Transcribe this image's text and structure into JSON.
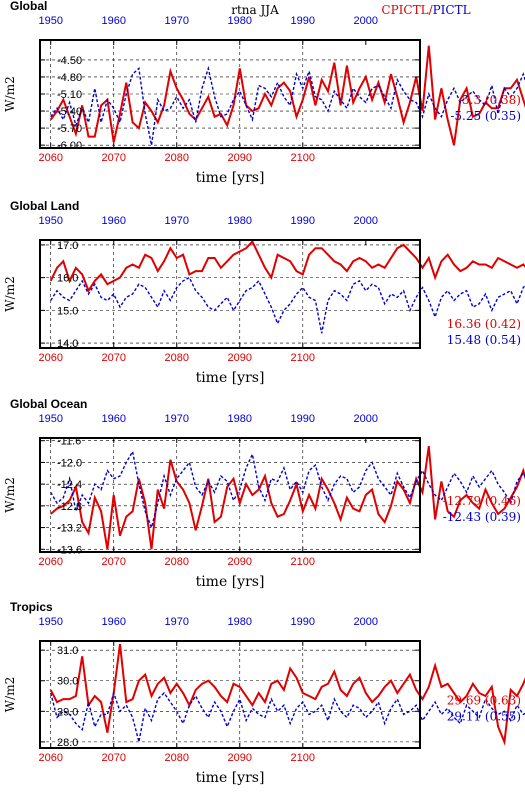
{
  "header": {
    "center": "rtna JJA",
    "legend_red": "CPICTL",
    "legend_sep": "/",
    "legend_blue": "PICTL"
  },
  "colors": {
    "red": "#e00000",
    "blue": "#0000d0"
  },
  "axis": {
    "xlabel": "time [yrs]",
    "ylabel": "W/m2",
    "bottom_ticks": [
      "2060",
      "2070",
      "2080",
      "2090",
      "2100"
    ],
    "top_ticks": [
      "1950",
      "1960",
      "1970",
      "1980",
      "1990",
      "2000"
    ]
  },
  "chart_data": [
    {
      "type": "line",
      "title": "Global",
      "xlabel": "time [yrs]",
      "ylabel": "W/m2",
      "ylim": [
        -6.05,
        -4.15
      ],
      "yticks": [
        -4.5,
        -4.8,
        -5.1,
        -5.4,
        -5.7,
        -6.0
      ],
      "ytick_labels": [
        "-4.50",
        "-4.80",
        "-5.10",
        "-5.40",
        "-5.70",
        "-6.00"
      ],
      "series": [
        {
          "name": "CPICTL",
          "color": "#e00000",
          "x_start": 2060,
          "stat": "-5.3 (0.38)",
          "values": [
            -5.55,
            -5.4,
            -5.2,
            -5.5,
            -5.8,
            -5.3,
            -5.85,
            -5.85,
            -5.3,
            -5.2,
            -5.95,
            -5.45,
            -4.9,
            -5.6,
            -5.7,
            -5.25,
            -5.4,
            -5.6,
            -5.3,
            -4.7,
            -5.0,
            -5.2,
            -5.45,
            -5.55,
            -5.35,
            -5.15,
            -5.5,
            -5.45,
            -5.65,
            -5.3,
            -4.65,
            -5.3,
            -5.4,
            -5.35,
            -5.1,
            -5.3,
            -5.0,
            -4.9,
            -5.05,
            -5.5,
            -5.2,
            -4.8,
            -5.3,
            -4.85,
            -5.05,
            -4.55,
            -5.3,
            -4.6,
            -5.25,
            -5.0,
            -4.8,
            -5.2,
            -4.9,
            -5.25,
            -4.75,
            -5.15,
            -5.6,
            -5.25,
            -4.8,
            -5.4,
            -4.25,
            -5.55,
            -5.0,
            -5.55,
            -6.0,
            -5.2,
            -5.0,
            -5.5,
            -5.45,
            -5.25,
            -5.35,
            -5.35,
            -5.0,
            -5.0,
            -4.85,
            -5.2,
            -5.55,
            -5.65
          ]
        },
        {
          "name": "PICTL",
          "color": "#0000d0",
          "x_start": 1950,
          "stat": "-5.25 (0.35)",
          "values": [
            -5.5,
            -5.35,
            -5.55,
            -5.25,
            -5.65,
            -5.35,
            -5.6,
            -5.0,
            -5.6,
            -5.2,
            -5.35,
            -5.6,
            -5.1,
            -4.75,
            -4.65,
            -5.45,
            -6.0,
            -5.2,
            -5.4,
            -5.35,
            -5.15,
            -5.35,
            -5.2,
            -5.6,
            -5.0,
            -4.65,
            -5.15,
            -5.5,
            -5.45,
            -5.2,
            -5.05,
            -5.3,
            -5.55,
            -4.95,
            -5.0,
            -5.15,
            -4.9,
            -5.15,
            -5.3,
            -4.75,
            -5.0,
            -4.7,
            -5.15,
            -5.2,
            -5.4,
            -5.05,
            -5.2,
            -5.35,
            -5.0,
            -5.15,
            -5.25,
            -5.0,
            -4.95,
            -5.15,
            -5.35,
            -4.85,
            -5.05,
            -5.2,
            -5.25,
            -5.5,
            -5.1,
            -5.35,
            -5.5,
            -5.2,
            -5.0,
            -5.25,
            -5.15,
            -5.05,
            -5.2,
            -5.3,
            -4.95,
            -5.45,
            -5.0,
            -5.15,
            -5.0,
            -4.75,
            -5.1,
            -5.25,
            -5.35,
            -5.2,
            -5.05,
            -5.3,
            -5.55,
            -5.2,
            -4.85,
            -5.15,
            -5.25,
            -5.55,
            -5.35,
            -5.0,
            -5.25,
            -5.0,
            -5.2,
            -6.0,
            -5.4,
            -5.15,
            -4.8,
            -5.05,
            -5.2,
            -5.3
          ]
        }
      ]
    },
    {
      "type": "line",
      "title": "Global Land",
      "xlabel": "time [yrs]",
      "ylabel": "W/m2",
      "ylim": [
        13.85,
        17.15
      ],
      "yticks": [
        17.0,
        16.0,
        15.0,
        14.0
      ],
      "ytick_labels": [
        "17.0",
        "16.0",
        "15.0",
        "14.0"
      ],
      "series": [
        {
          "name": "CPICTL",
          "color": "#e00000",
          "x_start": 2060,
          "stat": "16.36 (0.42)",
          "values": [
            15.9,
            16.3,
            16.5,
            15.9,
            16.3,
            16.1,
            15.6,
            15.9,
            16.1,
            15.8,
            15.9,
            16.0,
            16.3,
            16.4,
            16.3,
            16.7,
            16.6,
            16.2,
            16.5,
            16.9,
            16.6,
            16.7,
            16.1,
            16.2,
            16.2,
            16.6,
            16.6,
            16.3,
            16.5,
            16.7,
            16.8,
            16.9,
            17.1,
            16.7,
            16.3,
            16.0,
            16.7,
            16.6,
            16.5,
            16.2,
            16.1,
            16.7,
            16.9,
            16.9,
            16.7,
            16.5,
            16.4,
            16.2,
            16.5,
            16.6,
            16.5,
            16.3,
            16.4,
            16.3,
            16.6,
            16.9,
            17.0,
            16.8,
            16.6,
            16.3,
            16.6,
            16.0,
            16.5,
            16.7,
            16.4,
            16.2,
            16.3,
            16.5,
            16.4,
            16.4,
            16.3,
            16.6,
            16.5,
            16.4,
            16.3,
            16.4,
            16.2,
            15.5
          ]
        },
        {
          "name": "PICTL",
          "color": "#0000d0",
          "x_start": 1950,
          "stat": "15.48 (0.54)",
          "values": [
            15.3,
            15.6,
            15.4,
            15.3,
            15.6,
            15.9,
            15.5,
            15.8,
            15.4,
            15.3,
            15.5,
            15.1,
            15.4,
            15.5,
            15.8,
            15.7,
            15.4,
            15.1,
            15.6,
            15.3,
            15.7,
            15.9,
            16.0,
            15.6,
            15.4,
            15.1,
            15.0,
            15.2,
            15.4,
            15.0,
            15.3,
            15.6,
            15.7,
            15.9,
            15.5,
            15.1,
            14.6,
            15.0,
            15.2,
            15.5,
            15.7,
            15.4,
            15.3,
            14.3,
            15.3,
            15.6,
            15.5,
            15.3,
            15.8,
            15.9,
            15.6,
            15.8,
            15.7,
            15.2,
            15.5,
            15.4,
            15.6,
            15.0,
            15.4,
            15.7,
            15.3,
            14.8,
            15.4,
            15.6,
            15.3,
            15.5,
            15.6,
            15.1,
            15.2,
            15.5,
            15.0,
            15.4,
            15.5,
            15.6,
            15.2,
            15.7,
            15.9,
            15.5,
            15.6,
            15.1,
            15.3,
            15.9,
            15.7,
            15.4,
            16.3,
            15.3,
            16.1,
            15.2,
            16.3,
            15.5,
            15.9,
            16.2,
            15.8,
            15.0,
            16.2,
            14.0,
            15.9,
            15.5,
            15.6,
            15.2
          ]
        }
      ]
    },
    {
      "type": "line",
      "title": "Global Ocean",
      "xlabel": "time [yrs]",
      "ylabel": "W/m2",
      "ylim": [
        -13.65,
        -11.55
      ],
      "yticks": [
        -11.6,
        -12.0,
        -12.4,
        -12.8,
        -13.2,
        -13.6
      ],
      "ytick_labels": [
        "-11.6",
        "-12.0",
        "-12.4",
        "-12.8",
        "-13.2",
        "-13.6"
      ],
      "series": [
        {
          "name": "CPICTL",
          "color": "#e00000",
          "x_start": 2060,
          "stat": "-12.79 (0.46)",
          "values": [
            -12.95,
            -12.85,
            -12.8,
            -12.7,
            -12.45,
            -13.1,
            -13.3,
            -12.65,
            -12.9,
            -13.6,
            -12.6,
            -13.35,
            -13.0,
            -12.9,
            -12.3,
            -12.75,
            -13.6,
            -12.5,
            -12.85,
            -11.95,
            -12.35,
            -12.5,
            -12.75,
            -13.25,
            -12.8,
            -12.3,
            -13.1,
            -13.0,
            -12.45,
            -12.3,
            -12.75,
            -12.4,
            -12.6,
            -12.5,
            -12.25,
            -12.75,
            -13.0,
            -12.95,
            -12.7,
            -12.4,
            -12.9,
            -12.6,
            -12.85,
            -12.3,
            -12.5,
            -12.75,
            -13.05,
            -12.65,
            -12.85,
            -12.9,
            -12.6,
            -12.5,
            -12.95,
            -13.1,
            -12.8,
            -12.35,
            -12.5,
            -12.75,
            -12.3,
            -12.55,
            -11.7,
            -13.05,
            -12.35,
            -12.9,
            -13.0,
            -12.7,
            -12.6,
            -12.75,
            -12.85,
            -12.5,
            -12.75,
            -12.95,
            -12.85,
            -12.65,
            -12.45,
            -12.15,
            -12.55,
            -12.95
          ]
        },
        {
          "name": "PICTL",
          "color": "#0000d0",
          "x_start": 1950,
          "stat": "-12.43 (0.39)",
          "values": [
            -12.55,
            -12.75,
            -12.65,
            -12.3,
            -12.9,
            -12.6,
            -12.75,
            -12.4,
            -12.5,
            -12.15,
            -12.3,
            -12.25,
            -12.0,
            -11.8,
            -12.4,
            -12.9,
            -13.2,
            -12.75,
            -12.25,
            -12.6,
            -12.3,
            -12.15,
            -12.0,
            -12.45,
            -12.6,
            -12.35,
            -12.55,
            -12.25,
            -12.35,
            -12.7,
            -12.5,
            -12.1,
            -11.85,
            -12.45,
            -12.7,
            -12.3,
            -12.35,
            -12.1,
            -12.5,
            -12.35,
            -12.55,
            -12.15,
            -12.05,
            -12.45,
            -12.7,
            -12.4,
            -12.25,
            -12.3,
            -12.55,
            -12.45,
            -12.15,
            -12.0,
            -12.3,
            -12.45,
            -12.6,
            -12.2,
            -12.45,
            -12.65,
            -12.35,
            -12.15,
            -12.4,
            -12.6,
            -12.7,
            -12.45,
            -12.2,
            -12.35,
            -12.55,
            -12.25,
            -12.45,
            -12.3,
            -12.15,
            -12.4,
            -12.55,
            -12.75,
            -12.35,
            -12.2,
            -12.4,
            -12.55,
            -12.3,
            -12.15,
            -12.35,
            -12.6,
            -12.8,
            -12.45,
            -12.2,
            -12.35,
            -12.5,
            -12.75,
            -12.35,
            -12.15,
            -12.45,
            -12.55,
            -12.35,
            -12.6,
            -12.5,
            -12.2,
            -11.9,
            -12.05,
            -12.3,
            -12.5
          ]
        }
      ]
    },
    {
      "type": "line",
      "title": "Tropics",
      "xlabel": "time [yrs]",
      "ylabel": "W/m2",
      "ylim": [
        27.8,
        31.3
      ],
      "yticks": [
        31.0,
        30.0,
        29.0,
        28.0
      ],
      "ytick_labels": [
        "31.0",
        "30.0",
        "29.0",
        "28.0"
      ],
      "series": [
        {
          "name": "CPICTL",
          "color": "#e00000",
          "x_start": 2060,
          "stat": "29.69 (0.63)",
          "values": [
            29.7,
            29.3,
            29.4,
            29.4,
            29.5,
            30.8,
            29.2,
            29.5,
            29.3,
            28.3,
            29.6,
            31.2,
            29.3,
            29.4,
            30.0,
            30.2,
            29.5,
            29.9,
            30.1,
            29.6,
            29.9,
            29.6,
            29.2,
            29.7,
            29.9,
            30.0,
            29.8,
            29.5,
            29.3,
            29.9,
            29.8,
            29.5,
            29.2,
            29.6,
            29.3,
            29.9,
            30.0,
            29.7,
            30.4,
            30.1,
            29.6,
            29.5,
            29.4,
            29.8,
            29.9,
            30.3,
            29.7,
            29.5,
            29.9,
            30.1,
            29.6,
            29.3,
            29.5,
            29.8,
            30.0,
            29.6,
            29.9,
            30.2,
            29.7,
            29.4,
            29.8,
            30.5,
            29.8,
            29.9,
            29.6,
            29.3,
            29.5,
            29.9,
            29.6,
            29.5,
            29.8,
            28.5,
            28.0,
            29.7,
            29.5,
            29.9,
            30.4,
            29.0
          ]
        },
        {
          "name": "PICTL",
          "color": "#0000d0",
          "x_start": 1950,
          "stat": "29.11 (0.55)",
          "values": [
            29.6,
            28.8,
            29.0,
            28.9,
            28.6,
            28.4,
            29.3,
            28.5,
            28.9,
            28.9,
            29.6,
            29.0,
            29.2,
            28.8,
            28.0,
            29.1,
            28.7,
            29.4,
            29.6,
            29.3,
            29.0,
            28.6,
            29.2,
            29.5,
            29.1,
            28.8,
            29.3,
            29.0,
            28.5,
            29.0,
            29.4,
            28.7,
            29.1,
            28.9,
            28.8,
            29.4,
            29.0,
            29.2,
            28.6,
            29.1,
            29.3,
            28.9,
            29.0,
            29.2,
            28.7,
            29.4,
            29.0,
            28.8,
            29.2,
            29.1,
            28.8,
            29.0,
            29.3,
            28.6,
            29.1,
            29.4,
            28.9,
            29.0,
            29.2,
            28.7,
            29.0,
            29.3,
            28.9,
            29.1,
            28.8,
            28.6,
            29.2,
            29.0,
            28.8,
            29.4,
            29.1,
            28.9,
            29.0,
            28.7,
            29.2,
            28.9,
            29.0,
            29.4,
            29.3,
            28.8,
            29.0,
            29.5,
            28.9,
            28.6,
            29.1,
            29.3,
            28.7,
            29.0,
            29.4,
            29.8,
            29.1,
            28.8,
            29.2,
            28.1,
            28.6,
            29.3,
            29.6,
            29.1,
            29.2,
            28.9
          ]
        }
      ]
    }
  ]
}
